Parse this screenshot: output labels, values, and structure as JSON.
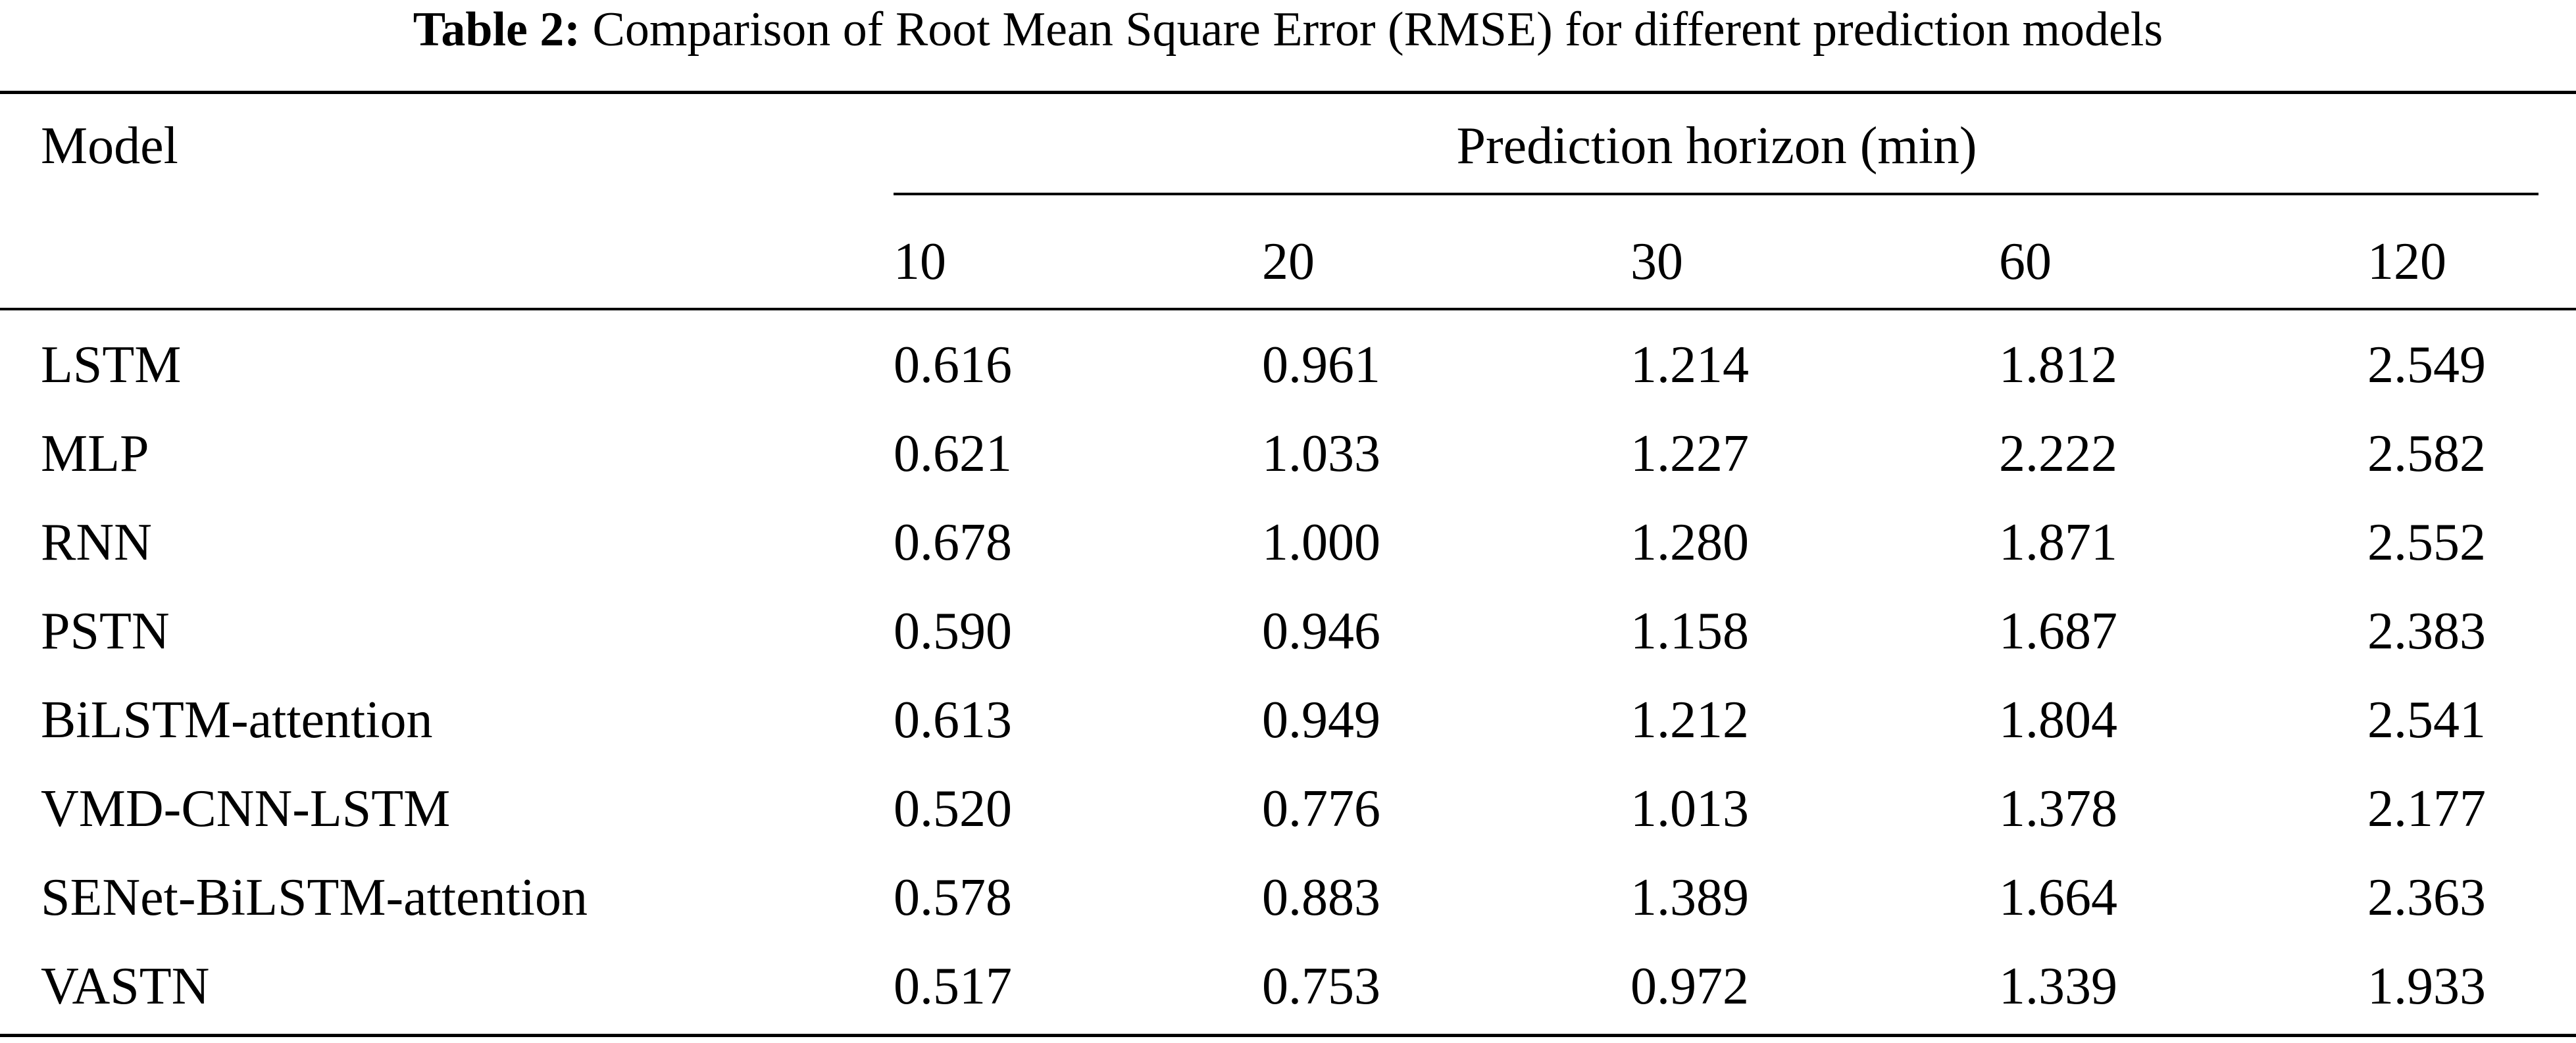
{
  "caption": {
    "label": "Table 2:",
    "text": "Comparison of Root Mean Square Error (RMSE) for different prediction models"
  },
  "table": {
    "model_header": "Model",
    "group_header": "Prediction horizon (min)",
    "columns": [
      "10",
      "20",
      "30",
      "60",
      "120"
    ],
    "rows": [
      {
        "model": "LSTM",
        "values": [
          "0.616",
          "0.961",
          "1.214",
          "1.812",
          "2.549"
        ]
      },
      {
        "model": "MLP",
        "values": [
          "0.621",
          "1.033",
          "1.227",
          "2.222",
          "2.582"
        ]
      },
      {
        "model": "RNN",
        "values": [
          "0.678",
          "1.000",
          "1.280",
          "1.871",
          "2.552"
        ]
      },
      {
        "model": "PSTN",
        "values": [
          "0.590",
          "0.946",
          "1.158",
          "1.687",
          "2.383"
        ]
      },
      {
        "model": "BiLSTM-attention",
        "values": [
          "0.613",
          "0.949",
          "1.212",
          "1.804",
          "2.541"
        ]
      },
      {
        "model": "VMD-CNN-LSTM",
        "values": [
          "0.520",
          "0.776",
          "1.013",
          "1.378",
          "2.177"
        ]
      },
      {
        "model": "SENet-BiLSTM-attention",
        "values": [
          "0.578",
          "0.883",
          "1.389",
          "1.664",
          "2.363"
        ]
      },
      {
        "model": "VASTN",
        "values": [
          "0.517",
          "0.753",
          "0.972",
          "1.339",
          "1.933"
        ]
      }
    ]
  }
}
